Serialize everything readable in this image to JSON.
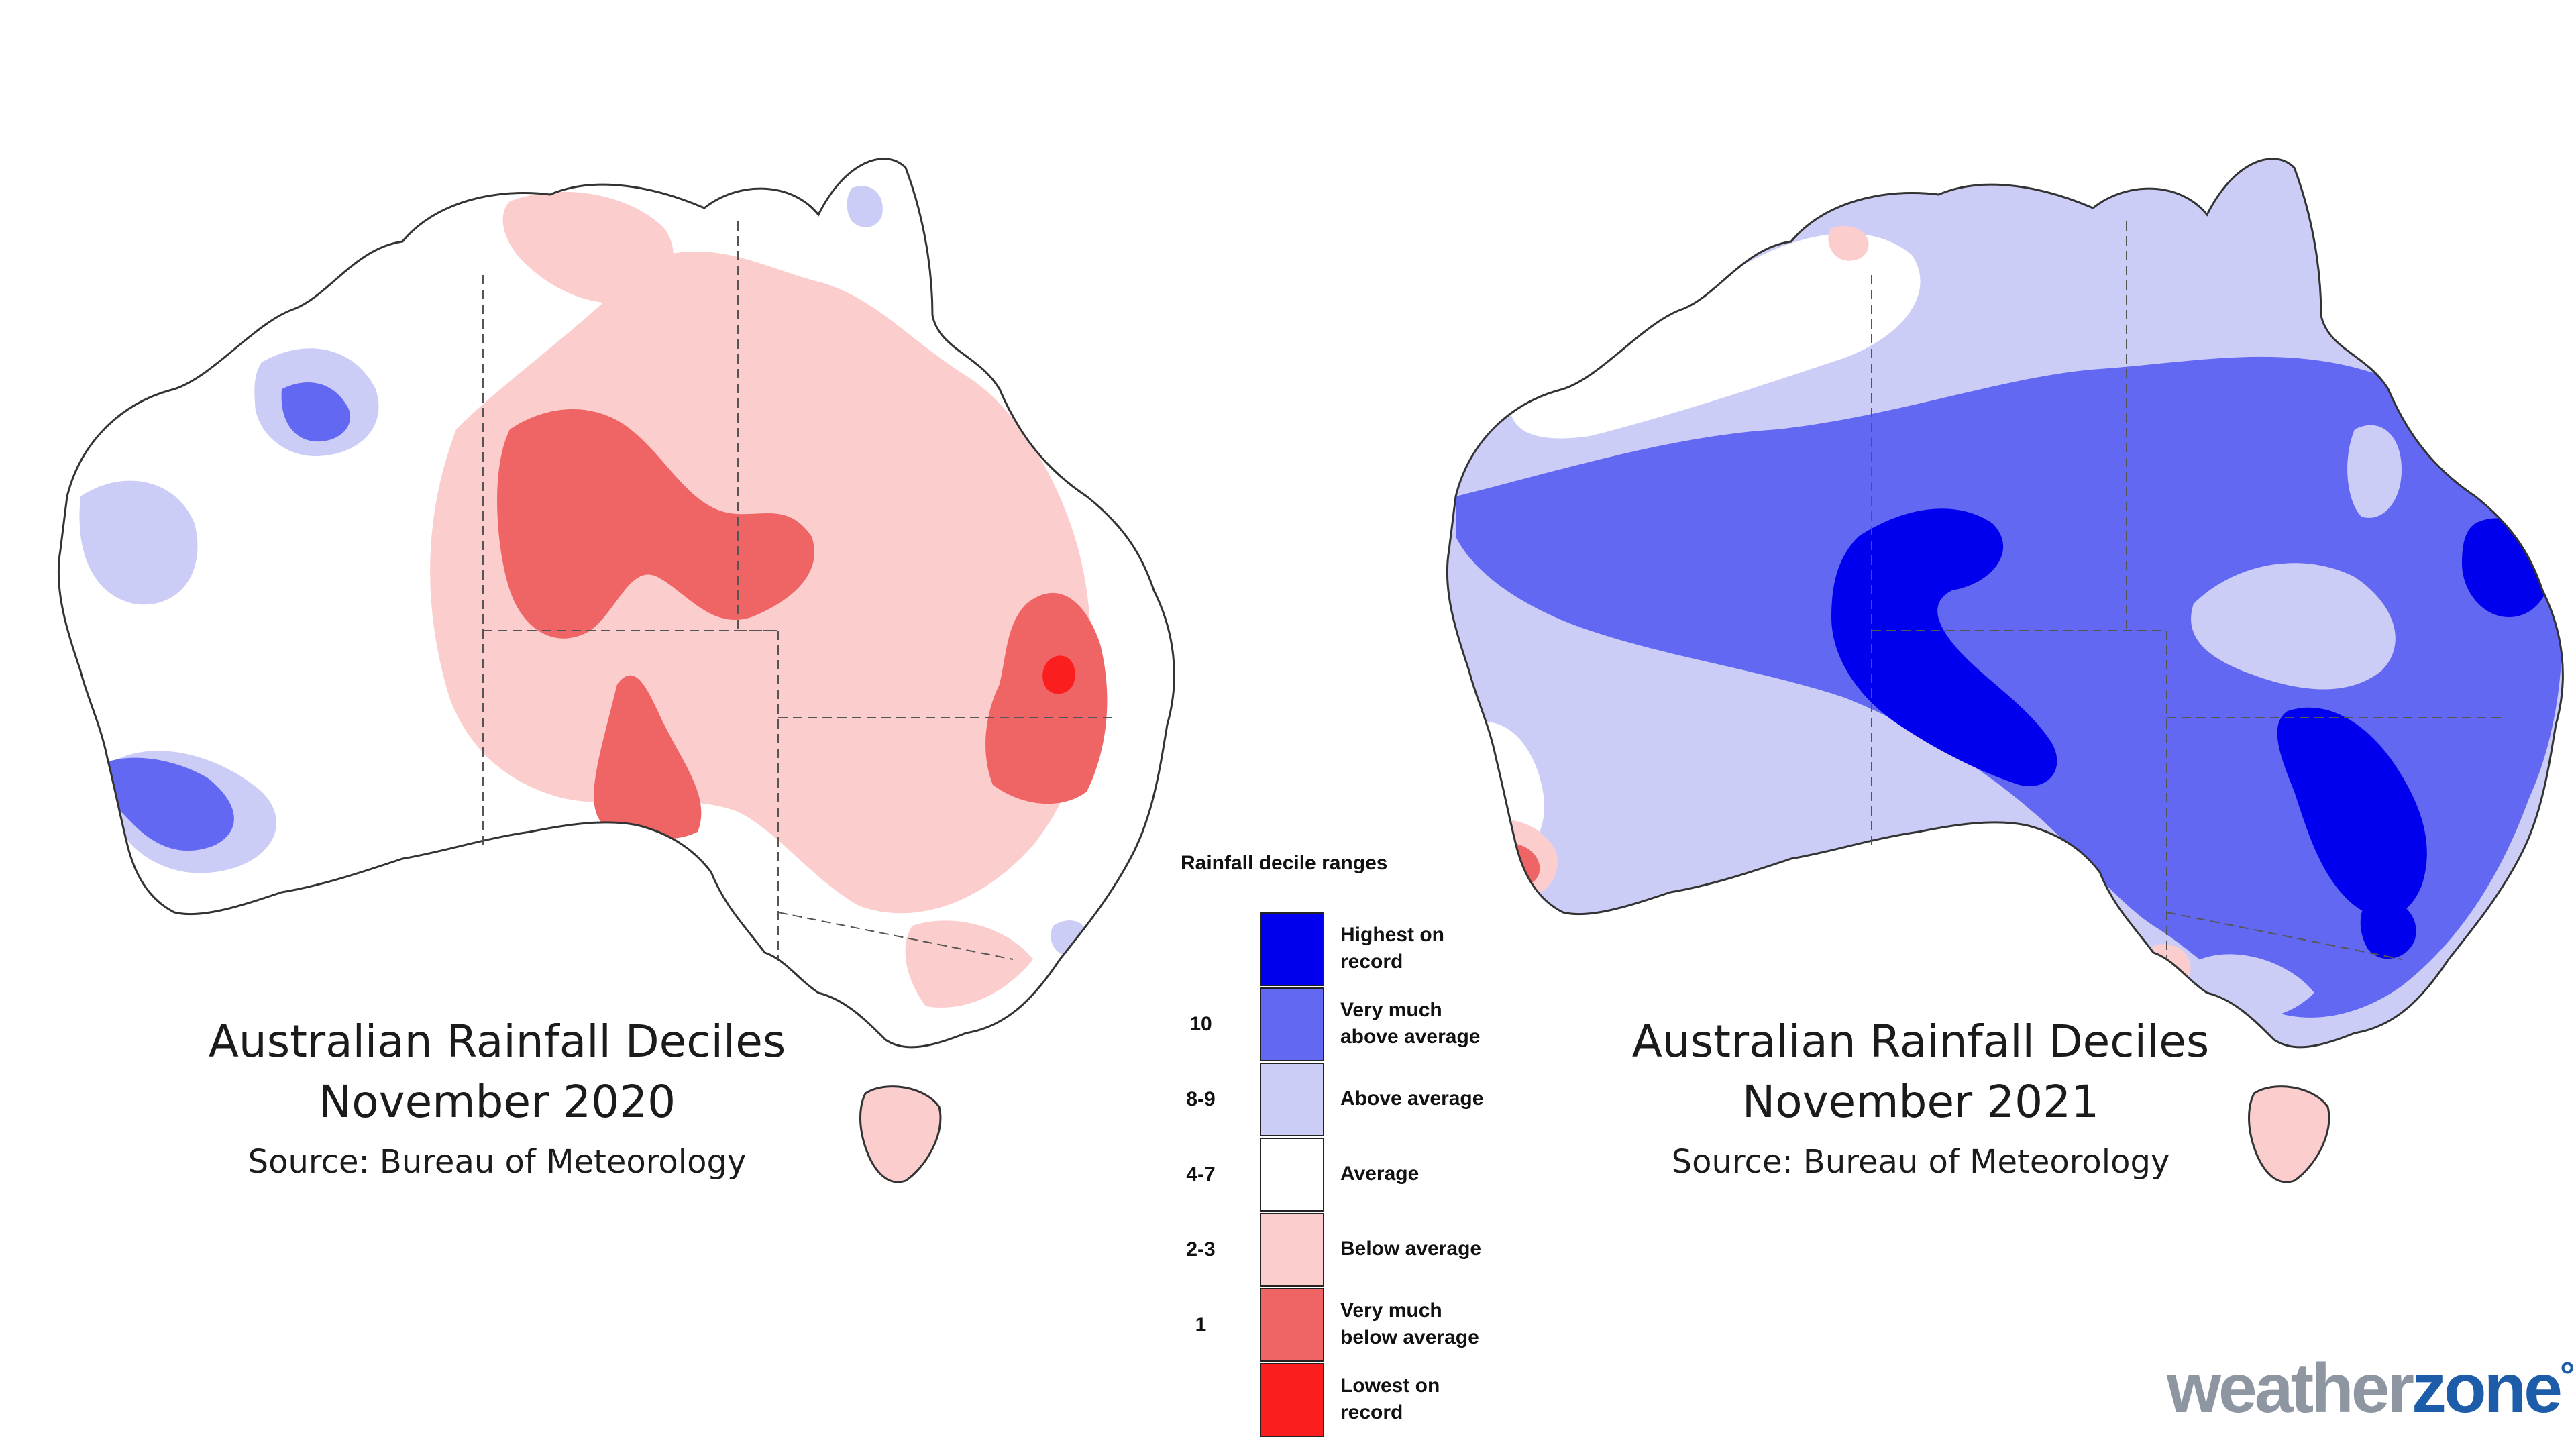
{
  "maps": [
    {
      "title": "Australian Rainfall Deciles",
      "period": "November 2020",
      "source": "Source: Bureau of Meteorology",
      "dominant_category": "Below average"
    },
    {
      "title": "Australian Rainfall Deciles",
      "period": "November 2021",
      "source": "Source: Bureau of Meteorology",
      "dominant_category": "Very much above average"
    }
  ],
  "legend": {
    "title": "Rainfall decile ranges",
    "items": [
      {
        "range": "",
        "label_line1": "Highest on",
        "label_line2": "record",
        "color": "#0000ee"
      },
      {
        "range": "10",
        "label_line1": "Very much",
        "label_line2": "above average",
        "color": "#6268f2"
      },
      {
        "range": "8-9",
        "label_line1": "Above average",
        "label_line2": "",
        "color": "#cccdf6"
      },
      {
        "range": "4-7",
        "label_line1": "Average",
        "label_line2": "",
        "color": "#ffffff"
      },
      {
        "range": "2-3",
        "label_line1": "Below average",
        "label_line2": "",
        "color": "#fbcdcd"
      },
      {
        "range": "1",
        "label_line1": "Very much",
        "label_line2": "below average",
        "color": "#ef6464"
      },
      {
        "range": "",
        "label_line1": "Lowest on",
        "label_line2": "record",
        "color": "#fa1e1e"
      }
    ]
  },
  "branding": {
    "logo_part1": "weather",
    "logo_part2": "zone",
    "logo_mark": "°",
    "logo_grey": "#8e96a2",
    "logo_blue": "#1d5ca8"
  }
}
